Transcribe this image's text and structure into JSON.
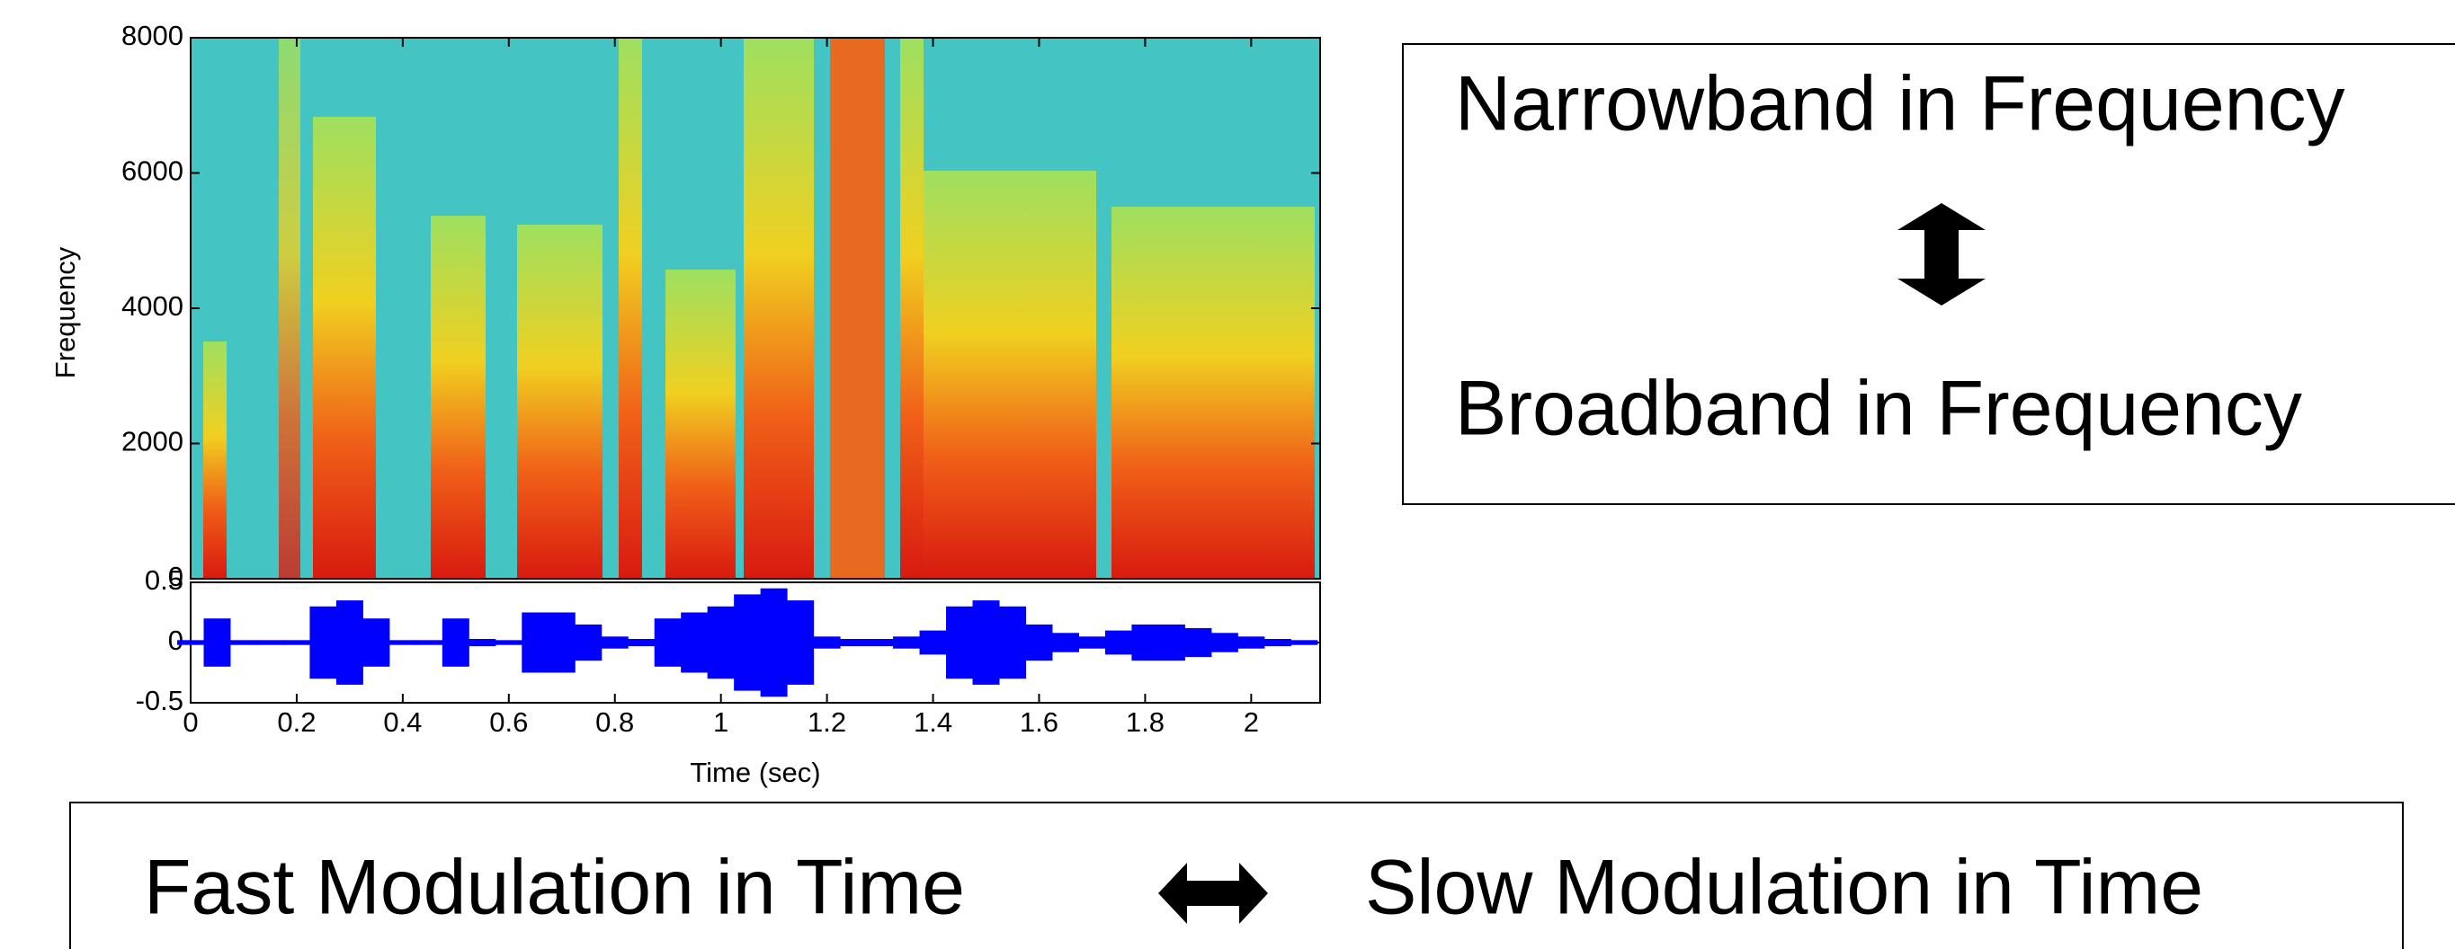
{
  "chart_data": [
    {
      "type": "spectrogram",
      "ylabel": "Frequency",
      "ylim": [
        0,
        8000
      ],
      "yticks": [
        0,
        2000,
        4000,
        6000,
        8000
      ],
      "xlim": [
        0,
        2.13
      ]
    },
    {
      "type": "line",
      "xlabel": "Time  (sec)",
      "color": "#0000ff",
      "xlim": [
        0,
        2.13
      ],
      "ylim": [
        -0.5,
        0.5
      ],
      "xticks": [
        0,
        0.2,
        0.4,
        0.6,
        0.8,
        1,
        1.2,
        1.4,
        1.6,
        1.8,
        2
      ],
      "yticks": [
        -0.5,
        0,
        0.5
      ],
      "x": [
        0,
        0.05,
        0.1,
        0.15,
        0.2,
        0.25,
        0.3,
        0.35,
        0.4,
        0.45,
        0.5,
        0.55,
        0.6,
        0.65,
        0.7,
        0.75,
        0.8,
        0.85,
        0.9,
        0.95,
        1.0,
        1.05,
        1.1,
        1.15,
        1.2,
        1.25,
        1.3,
        1.35,
        1.4,
        1.45,
        1.5,
        1.55,
        1.6,
        1.65,
        1.7,
        1.75,
        1.8,
        1.85,
        1.9,
        1.95,
        2.0,
        2.05,
        2.1
      ],
      "values": [
        0.02,
        0.2,
        0.02,
        0.02,
        0.02,
        0.3,
        0.35,
        0.2,
        0.02,
        0.02,
        0.2,
        0.03,
        0.02,
        0.25,
        0.25,
        0.15,
        0.05,
        0.03,
        0.2,
        0.25,
        0.3,
        0.4,
        0.45,
        0.35,
        0.05,
        0.03,
        0.03,
        0.05,
        0.1,
        0.3,
        0.35,
        0.3,
        0.15,
        0.08,
        0.05,
        0.1,
        0.15,
        0.15,
        0.12,
        0.08,
        0.05,
        0.03,
        0.02
      ]
    }
  ],
  "annotations": {
    "top": "Narrowband in Frequency",
    "bottom": "Broadband in Frequency",
    "left": "Fast Modulation in Time",
    "right": "Slow Modulation in Time"
  }
}
